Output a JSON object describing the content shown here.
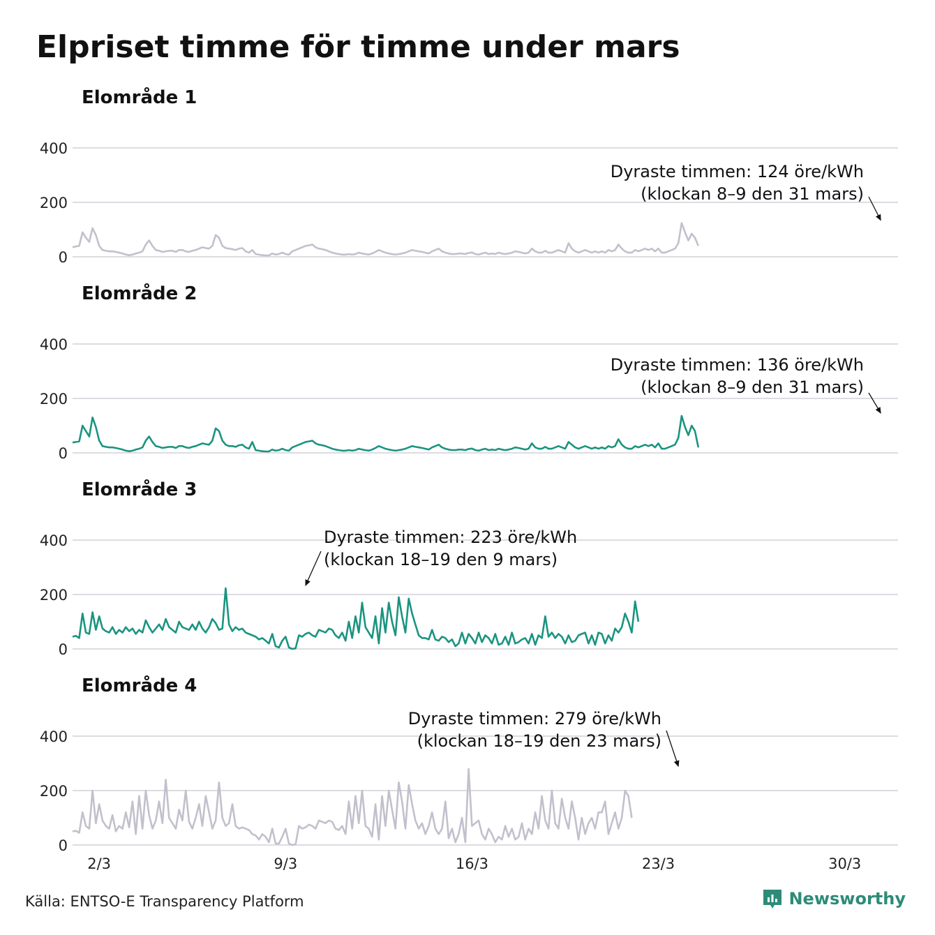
{
  "title": "Elpriset timme för timme under mars",
  "source": "Källa: ENTSO-E Transparency Platform",
  "brand": "Newsworthy",
  "colors": {
    "grey": "#c2c0cc",
    "teal": "#1a9480",
    "brand": "#2e8b78"
  },
  "chart_data": [
    {
      "type": "line",
      "title": "Elområde 1",
      "color": "#c2c0cc",
      "ylim": [
        0,
        400
      ],
      "yticks": [
        0,
        200,
        400
      ],
      "xlim": [
        1,
        32
      ],
      "peak": {
        "day": 31.35,
        "value": 124
      },
      "annotation": [
        "Dyraste timmen: 124 öre/kWh",
        "(klockan 8–9 den 31 mars)"
      ],
      "series": [
        {
          "name": "Elområde 1",
          "x_start": 1,
          "x_step": 0.125,
          "values": [
            35,
            38,
            40,
            90,
            70,
            55,
            105,
            80,
            40,
            25,
            22,
            20,
            20,
            18,
            15,
            12,
            8,
            6,
            8,
            12,
            15,
            20,
            45,
            60,
            40,
            25,
            22,
            18,
            20,
            22,
            22,
            18,
            25,
            25,
            20,
            18,
            22,
            25,
            30,
            35,
            32,
            30,
            40,
            80,
            70,
            40,
            32,
            30,
            28,
            25,
            30,
            32,
            20,
            15,
            25,
            10,
            8,
            6,
            5,
            5,
            12,
            8,
            10,
            15,
            10,
            8,
            20,
            25,
            30,
            35,
            40,
            42,
            45,
            35,
            30,
            28,
            25,
            20,
            15,
            12,
            10,
            8,
            8,
            10,
            8,
            10,
            15,
            12,
            10,
            8,
            12,
            18,
            25,
            20,
            15,
            12,
            10,
            8,
            10,
            12,
            15,
            20,
            25,
            22,
            20,
            18,
            15,
            12,
            20,
            25,
            30,
            20,
            15,
            12,
            10,
            10,
            12,
            12,
            10,
            14,
            16,
            10,
            8,
            12,
            15,
            10,
            12,
            10,
            15,
            12,
            10,
            12,
            15,
            20,
            18,
            15,
            12,
            15,
            30,
            20,
            15,
            15,
            22,
            15,
            15,
            20,
            25,
            20,
            15,
            50,
            30,
            20,
            15,
            20,
            25,
            20,
            15,
            20,
            15,
            20,
            15,
            25,
            20,
            25,
            45,
            30,
            20,
            15,
            15,
            25,
            20,
            25,
            30,
            25,
            30,
            20,
            30,
            15,
            15,
            20,
            25,
            30,
            50,
            124,
            90,
            60,
            85,
            70,
            40
          ]
        }
      ]
    },
    {
      "type": "line",
      "title": "Elområde 2",
      "color": "#1a9480",
      "ylim": [
        0,
        400
      ],
      "yticks": [
        0,
        200,
        400
      ],
      "xlim": [
        1,
        32
      ],
      "peak": {
        "day": 31.35,
        "value": 136
      },
      "annotation": [
        "Dyraste timmen: 136 öre/kWh",
        "(klockan 8–9 den 31 mars)"
      ],
      "series": [
        {
          "name": "Elområde 2",
          "x_start": 1,
          "x_step": 0.125,
          "values": [
            38,
            40,
            42,
            100,
            80,
            60,
            130,
            95,
            45,
            25,
            22,
            20,
            20,
            18,
            15,
            12,
            8,
            6,
            8,
            12,
            15,
            20,
            45,
            60,
            40,
            25,
            22,
            18,
            20,
            22,
            22,
            18,
            25,
            25,
            20,
            18,
            22,
            25,
            30,
            35,
            32,
            30,
            45,
            90,
            80,
            45,
            30,
            25,
            25,
            22,
            28,
            30,
            20,
            15,
            40,
            10,
            8,
            6,
            5,
            5,
            12,
            8,
            10,
            15,
            10,
            8,
            20,
            25,
            30,
            35,
            40,
            42,
            45,
            35,
            30,
            28,
            25,
            20,
            15,
            12,
            10,
            8,
            8,
            10,
            8,
            10,
            15,
            12,
            10,
            8,
            12,
            18,
            25,
            20,
            15,
            12,
            10,
            8,
            10,
            12,
            15,
            20,
            25,
            22,
            20,
            18,
            15,
            12,
            20,
            25,
            30,
            20,
            15,
            12,
            10,
            10,
            12,
            12,
            10,
            14,
            16,
            10,
            8,
            12,
            15,
            10,
            12,
            10,
            15,
            12,
            10,
            12,
            15,
            20,
            18,
            15,
            12,
            15,
            35,
            20,
            15,
            15,
            22,
            15,
            15,
            20,
            25,
            20,
            15,
            40,
            30,
            20,
            15,
            20,
            25,
            20,
            15,
            20,
            15,
            20,
            15,
            25,
            20,
            25,
            50,
            30,
            20,
            15,
            15,
            25,
            20,
            25,
            30,
            25,
            30,
            20,
            35,
            15,
            15,
            20,
            25,
            30,
            55,
            136,
            95,
            65,
            100,
            80,
            20
          ]
        }
      ]
    },
    {
      "type": "line",
      "title": "Elområde 3",
      "color": "#1a9480",
      "ylim": [
        0,
        400
      ],
      "yticks": [
        0,
        200,
        400
      ],
      "xlim": [
        1,
        32
      ],
      "peak": {
        "day": 9.75,
        "value": 223
      },
      "annotation": [
        "Dyraste timmen: 223 öre/kWh",
        "(klockan 18–19 den 9 mars)"
      ],
      "series": [
        {
          "name": "Elområde 3",
          "x_start": 1,
          "x_step": 0.125,
          "values": [
            45,
            48,
            40,
            130,
            60,
            55,
            135,
            70,
            120,
            75,
            65,
            60,
            80,
            55,
            70,
            60,
            80,
            65,
            75,
            55,
            70,
            60,
            105,
            80,
            60,
            75,
            90,
            70,
            110,
            80,
            70,
            60,
            100,
            80,
            75,
            70,
            90,
            70,
            100,
            75,
            60,
            80,
            110,
            95,
            70,
            75,
            223,
            90,
            65,
            80,
            70,
            75,
            60,
            55,
            50,
            45,
            35,
            40,
            30,
            20,
            55,
            10,
            5,
            30,
            45,
            5,
            0,
            2,
            50,
            45,
            55,
            60,
            50,
            45,
            70,
            65,
            60,
            75,
            70,
            50,
            40,
            60,
            30,
            100,
            40,
            120,
            60,
            170,
            80,
            60,
            40,
            120,
            20,
            150,
            60,
            170,
            100,
            50,
            190,
            120,
            60,
            185,
            130,
            90,
            50,
            40,
            40,
            35,
            70,
            35,
            30,
            45,
            40,
            25,
            35,
            10,
            20,
            60,
            20,
            55,
            40,
            20,
            60,
            25,
            50,
            40,
            20,
            55,
            15,
            20,
            45,
            15,
            60,
            20,
            25,
            35,
            40,
            20,
            55,
            15,
            50,
            40,
            120,
            45,
            60,
            40,
            55,
            45,
            20,
            50,
            25,
            30,
            50,
            55,
            60,
            20,
            50,
            15,
            60,
            55,
            20,
            50,
            30,
            75,
            60,
            80,
            130,
            100,
            60,
            175,
            100
          ]
        }
      ]
    },
    {
      "type": "line",
      "title": "Elområde 4",
      "color": "#c2c0cc",
      "ylim": [
        0,
        400
      ],
      "yticks": [
        0,
        200,
        400
      ],
      "xlim": [
        1,
        32
      ],
      "peak": {
        "day": 23.75,
        "value": 279
      },
      "annotation": [
        "Dyraste timmen: 279 öre/kWh",
        "(klockan 18–19 den 23 mars)"
      ],
      "series": [
        {
          "name": "Elområde 4",
          "x_start": 1,
          "x_step": 0.125,
          "values": [
            50,
            52,
            45,
            120,
            70,
            60,
            200,
            80,
            150,
            90,
            70,
            60,
            110,
            50,
            70,
            60,
            120,
            65,
            160,
            40,
            180,
            60,
            200,
            110,
            60,
            90,
            160,
            80,
            240,
            100,
            80,
            60,
            130,
            90,
            200,
            85,
            60,
            100,
            150,
            70,
            180,
            120,
            60,
            90,
            230,
            100,
            70,
            80,
            150,
            70,
            60,
            65,
            60,
            55,
            40,
            35,
            20,
            40,
            30,
            10,
            60,
            5,
            5,
            30,
            60,
            5,
            0,
            2,
            70,
            60,
            65,
            75,
            70,
            60,
            90,
            85,
            80,
            90,
            85,
            60,
            55,
            70,
            40,
            160,
            60,
            180,
            80,
            200,
            70,
            60,
            30,
            150,
            20,
            180,
            70,
            200,
            130,
            60,
            230,
            160,
            60,
            220,
            150,
            90,
            60,
            80,
            40,
            70,
            120,
            60,
            40,
            60,
            160,
            25,
            60,
            10,
            40,
            100,
            10,
            279,
            70,
            80,
            90,
            40,
            20,
            60,
            40,
            10,
            30,
            20,
            70,
            30,
            60,
            20,
            30,
            80,
            20,
            60,
            40,
            120,
            60,
            180,
            90,
            60,
            200,
            80,
            60,
            170,
            100,
            60,
            160,
            100,
            20,
            100,
            40,
            80,
            100,
            60,
            120,
            120,
            160,
            40,
            80,
            120,
            60,
            100,
            200,
            180,
            100
          ]
        }
      ]
    }
  ],
  "x_axis": {
    "ticks": [
      {
        "day": 2,
        "label": "2/3"
      },
      {
        "day": 9,
        "label": "9/3"
      },
      {
        "day": 16,
        "label": "16/3"
      },
      {
        "day": 23,
        "label": "23/3"
      },
      {
        "day": 30,
        "label": "30/3"
      }
    ]
  }
}
